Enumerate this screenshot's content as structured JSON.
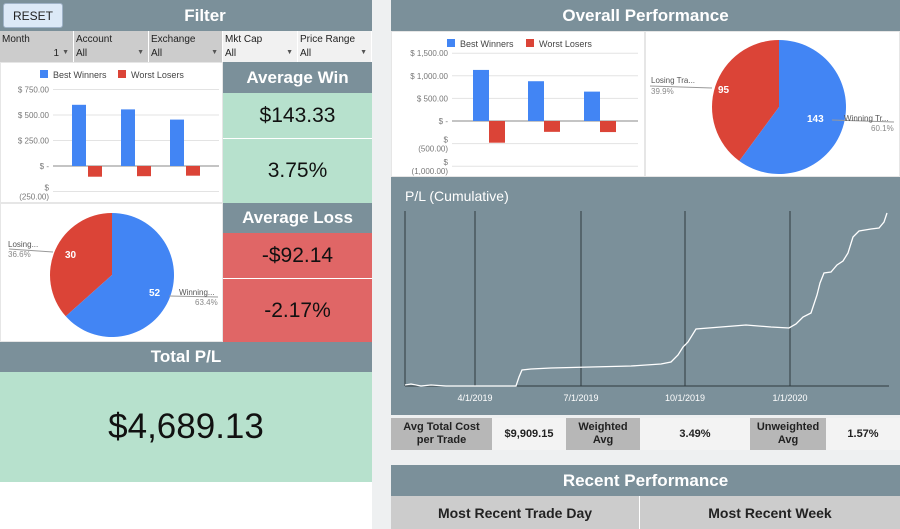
{
  "filter": {
    "reset_label": "RESET",
    "title": "Filter",
    "fields": [
      {
        "label": "Month",
        "value": "1"
      },
      {
        "label": "Account",
        "value": "All"
      },
      {
        "label": "Exchange",
        "value": "All"
      },
      {
        "label": "Mkt Cap",
        "value": "All"
      },
      {
        "label": "Price Range",
        "value": "All"
      }
    ]
  },
  "left_bar_chart": {
    "legend": [
      "Best Winners",
      "Worst Losers"
    ],
    "yticks": [
      "$ 750.00",
      "$ 500.00",
      "$ 250.00",
      "$ -",
      "$ (250.00)"
    ],
    "best": [
      600,
      555,
      455
    ],
    "worst": [
      -105,
      -100,
      -95
    ]
  },
  "left_pie": {
    "losing_label": "Losing...",
    "losing_pct": "36.6%",
    "losing_value": "30",
    "winning_label": "Winning...",
    "winning_pct": "63.4%",
    "winning_value": "52"
  },
  "average_win": {
    "title": "Average Win",
    "amount": "$143.33",
    "percent": "3.75%"
  },
  "average_loss": {
    "title": "Average Loss",
    "amount": "-$92.14",
    "percent": "-2.17%"
  },
  "total_pl": {
    "title": "Total P/L",
    "value": "$4,689.13"
  },
  "overall": {
    "title": "Overall Performance",
    "bar_chart": {
      "legend": [
        "Best Winners",
        "Worst Losers"
      ],
      "yticks": [
        "$ 1,500.00",
        "$ 1,000.00",
        "$ 500.00",
        "$ -",
        "$ (500.00)",
        "$ (1,000.00)"
      ],
      "best": [
        1130,
        880,
        650
      ],
      "worst": [
        -480,
        -240,
        -245
      ]
    },
    "pie": {
      "losing_label": "Losing Tra...",
      "losing_pct": "39.9%",
      "losing_value": "95",
      "winning_label": "Winning Tr...",
      "winning_pct": "60.1%",
      "winning_value": "143"
    }
  },
  "cumulative": {
    "title": "P/L (Cumulative)",
    "xticks": [
      "4/1/2019",
      "7/1/2019",
      "10/1/2019",
      "1/1/2020"
    ]
  },
  "stats": {
    "avg_total_cost_label": "Avg Total Cost per Trade",
    "avg_total_cost_value": "$9,909.15",
    "weighted_label": "Weighted Avg",
    "weighted_value": "3.49%",
    "unweighted_label": "Unweighted Avg",
    "unweighted_value": "1.57%"
  },
  "recent": {
    "title": "Recent Performance",
    "col1": "Most Recent Trade Day",
    "col2": "Most Recent Week"
  },
  "colors": {
    "blue": "#4285f4",
    "red": "#db4437",
    "green_bg": "#b7e1cd",
    "red_bg": "#e06666",
    "header_gray": "#7b909a"
  }
}
